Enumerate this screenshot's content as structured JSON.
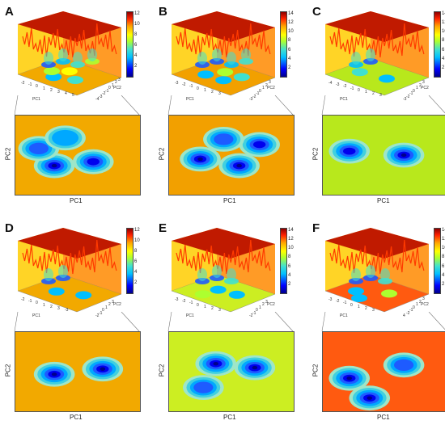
{
  "figure": {
    "panels": [
      {
        "letter": "A",
        "xlabel": "PC1",
        "ylabel": "PC2",
        "axis3d_x": "PC1",
        "axis3d_y": "PC2",
        "colorbar_ticks": [
          "12",
          "10",
          "8",
          "6",
          "4",
          "2"
        ],
        "bg": "#f2a900",
        "ticks3d": [
          "-2",
          "-1",
          "0",
          "1",
          "2",
          "3",
          "4",
          "5",
          "-4",
          "-3",
          "-2",
          "-1",
          "0",
          "1",
          "2",
          "3"
        ]
      },
      {
        "letter": "B",
        "xlabel": "PC1",
        "ylabel": "PC2",
        "axis3d_x": "PC1",
        "axis3d_y": "PC2",
        "colorbar_ticks": [
          "14",
          "12",
          "10",
          "8",
          "6",
          "4",
          "2"
        ],
        "bg": "#f2a000",
        "ticks3d": [
          "-3",
          "-2",
          "-1",
          "0",
          "1",
          "2",
          "3",
          "-3",
          "-2",
          "-1",
          "0",
          "1",
          "2",
          "3"
        ]
      },
      {
        "letter": "C",
        "xlabel": "PC1",
        "ylabel": "PC2",
        "axis3d_x": "PC1",
        "axis3d_y": "PC2",
        "colorbar_ticks": [
          "14",
          "12",
          "10",
          "8",
          "6",
          "4",
          "2"
        ],
        "bg": "#b8e81c",
        "ticks3d": [
          "-4",
          "-3",
          "-2",
          "-1",
          "0",
          "1",
          "2",
          "3",
          "-3",
          "-2",
          "-1",
          "0",
          "1",
          "2",
          "3"
        ]
      },
      {
        "letter": "D",
        "xlabel": "PC1",
        "ylabel": "PC2",
        "axis3d_x": "PC1",
        "axis3d_y": "PC2",
        "colorbar_ticks": [
          "12",
          "10",
          "8",
          "6",
          "4",
          "2"
        ],
        "bg": "#f2a900",
        "ticks3d": [
          "-2",
          "-1",
          "0",
          "1",
          "2",
          "3",
          "-3",
          "-2",
          "-1",
          "0",
          "1",
          "2",
          "3"
        ]
      },
      {
        "letter": "E",
        "xlabel": "PC1",
        "ylabel": "PC2",
        "axis3d_x": "PC1",
        "axis3d_y": "PC2",
        "colorbar_ticks": [
          "14",
          "12",
          "10",
          "8",
          "6",
          "4",
          "2"
        ],
        "bg": "#ccee22",
        "ticks3d": [
          "-3",
          "-2",
          "-1",
          "0",
          "1",
          "2",
          "3",
          "-2",
          "-1",
          "0",
          "1",
          "2",
          "3"
        ]
      },
      {
        "letter": "F",
        "xlabel": "PC1",
        "ylabel": "PC2",
        "axis3d_x": "PC1",
        "axis3d_y": "PC2",
        "colorbar_ticks": [
          "14",
          "12",
          "10",
          "8",
          "6",
          "4",
          "2"
        ],
        "bg": "#ff5a10",
        "ticks3d": [
          "-3",
          "-2",
          "-1",
          "0",
          "1",
          "2",
          "3",
          "4",
          "-2",
          "-1",
          "0",
          "1",
          "2",
          "3"
        ]
      }
    ]
  },
  "chart_data": [
    {
      "type": "heatmap",
      "panel": "A",
      "xlabel": "PC1",
      "ylabel": "PC2",
      "colorbar_range": [
        0,
        13
      ],
      "minima": [
        {
          "x": -1.5,
          "y": -0.8,
          "depth": 1
        },
        {
          "x": 1.0,
          "y": -0.5,
          "depth": 2
        },
        {
          "x": -2.5,
          "y": 0.5,
          "depth": 3
        },
        {
          "x": -0.8,
          "y": 1.3,
          "depth": 4
        }
      ]
    },
    {
      "type": "heatmap",
      "panel": "B",
      "xlabel": "PC1",
      "ylabel": "PC2",
      "colorbar_range": [
        0,
        15
      ],
      "minima": [
        {
          "x": -2.0,
          "y": -0.3,
          "depth": 1
        },
        {
          "x": 0.5,
          "y": -0.8,
          "depth": 1
        },
        {
          "x": 1.8,
          "y": 0.8,
          "depth": 2
        },
        {
          "x": -0.5,
          "y": 1.2,
          "depth": 3
        }
      ]
    },
    {
      "type": "heatmap",
      "panel": "C",
      "xlabel": "PC1",
      "ylabel": "PC2",
      "colorbar_range": [
        0,
        15
      ],
      "minima": [
        {
          "x": -2.3,
          "y": 0.3,
          "depth": 2
        },
        {
          "x": 1.2,
          "y": 0.0,
          "depth": 1
        }
      ]
    },
    {
      "type": "heatmap",
      "panel": "D",
      "xlabel": "PC1",
      "ylabel": "PC2",
      "colorbar_range": [
        0,
        13
      ],
      "minima": [
        {
          "x": -1.5,
          "y": -0.2,
          "depth": 1
        },
        {
          "x": 1.6,
          "y": 0.2,
          "depth": 1
        }
      ]
    },
    {
      "type": "heatmap",
      "panel": "E",
      "xlabel": "PC1",
      "ylabel": "PC2",
      "colorbar_range": [
        0,
        15
      ],
      "minima": [
        {
          "x": -1.0,
          "y": 0.6,
          "depth": 1
        },
        {
          "x": 1.5,
          "y": 0.3,
          "depth": 1
        },
        {
          "x": -1.8,
          "y": -1.2,
          "depth": 3
        }
      ]
    },
    {
      "type": "heatmap",
      "panel": "F",
      "xlabel": "PC1",
      "ylabel": "PC2",
      "colorbar_range": [
        0,
        15
      ],
      "minima": [
        {
          "x": -2.3,
          "y": -0.5,
          "depth": 1
        },
        {
          "x": -1.0,
          "y": -2.0,
          "depth": 1
        },
        {
          "x": 1.2,
          "y": 0.5,
          "depth": 3
        }
      ]
    }
  ]
}
